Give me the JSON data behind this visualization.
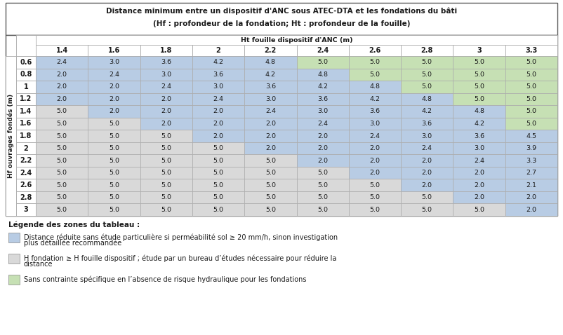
{
  "title_line1": "Distance minimum entre un dispositif d'ANC sous ATEC-DTA et les fondations du bâti",
  "title_line2": "(Hf : profondeur de la fondation; Ht : profondeur de la fouille)",
  "col_header_label": "Ht fouille dispositif d'ANC (m)",
  "row_header_label": "Hf ouvrages fondés (m)",
  "col_headers": [
    "1.4",
    "1.6",
    "1.8",
    "2",
    "2.2",
    "2.4",
    "2.6",
    "2.8",
    "3",
    "3.3"
  ],
  "row_headers": [
    "0.6",
    "0.8",
    "1",
    "1.2",
    "1.4",
    "1.6",
    "1.8",
    "2",
    "2.2",
    "2.4",
    "2.6",
    "2.8",
    "3"
  ],
  "values": [
    [
      2.4,
      3.0,
      3.6,
      4.2,
      4.8,
      5.0,
      5.0,
      5.0,
      5.0,
      5.0
    ],
    [
      2.0,
      2.4,
      3.0,
      3.6,
      4.2,
      4.8,
      5.0,
      5.0,
      5.0,
      5.0
    ],
    [
      2.0,
      2.0,
      2.4,
      3.0,
      3.6,
      4.2,
      4.8,
      5.0,
      5.0,
      5.0
    ],
    [
      2.0,
      2.0,
      2.0,
      2.4,
      3.0,
      3.6,
      4.2,
      4.8,
      5.0,
      5.0
    ],
    [
      5.0,
      2.0,
      2.0,
      2.0,
      2.4,
      3.0,
      3.6,
      4.2,
      4.8,
      5.0
    ],
    [
      5.0,
      5.0,
      2.0,
      2.0,
      2.0,
      2.4,
      3.0,
      3.6,
      4.2,
      5.0
    ],
    [
      5.0,
      5.0,
      5.0,
      2.0,
      2.0,
      2.0,
      2.4,
      3.0,
      3.6,
      4.5
    ],
    [
      5.0,
      5.0,
      5.0,
      5.0,
      2.0,
      2.0,
      2.0,
      2.4,
      3.0,
      3.9
    ],
    [
      5.0,
      5.0,
      5.0,
      5.0,
      5.0,
      2.0,
      2.0,
      2.0,
      2.4,
      3.3
    ],
    [
      5.0,
      5.0,
      5.0,
      5.0,
      5.0,
      5.0,
      2.0,
      2.0,
      2.0,
      2.7
    ],
    [
      5.0,
      5.0,
      5.0,
      5.0,
      5.0,
      5.0,
      5.0,
      2.0,
      2.0,
      2.1
    ],
    [
      5.0,
      5.0,
      5.0,
      5.0,
      5.0,
      5.0,
      5.0,
      5.0,
      2.0,
      2.0
    ],
    [
      5.0,
      5.0,
      5.0,
      5.0,
      5.0,
      5.0,
      5.0,
      5.0,
      5.0,
      2.0
    ]
  ],
  "colors": [
    [
      "blue",
      "blue",
      "blue",
      "blue",
      "blue",
      "green",
      "green",
      "green",
      "green",
      "green"
    ],
    [
      "blue",
      "blue",
      "blue",
      "blue",
      "blue",
      "blue",
      "green",
      "green",
      "green",
      "green"
    ],
    [
      "blue",
      "blue",
      "blue",
      "blue",
      "blue",
      "blue",
      "blue",
      "green",
      "green",
      "green"
    ],
    [
      "blue",
      "blue",
      "blue",
      "blue",
      "blue",
      "blue",
      "blue",
      "blue",
      "green",
      "green"
    ],
    [
      "gray",
      "blue",
      "blue",
      "blue",
      "blue",
      "blue",
      "blue",
      "blue",
      "blue",
      "green"
    ],
    [
      "gray",
      "gray",
      "blue",
      "blue",
      "blue",
      "blue",
      "blue",
      "blue",
      "blue",
      "green"
    ],
    [
      "gray",
      "gray",
      "gray",
      "blue",
      "blue",
      "blue",
      "blue",
      "blue",
      "blue",
      "blue"
    ],
    [
      "gray",
      "gray",
      "gray",
      "gray",
      "blue",
      "blue",
      "blue",
      "blue",
      "blue",
      "blue"
    ],
    [
      "gray",
      "gray",
      "gray",
      "gray",
      "gray",
      "blue",
      "blue",
      "blue",
      "blue",
      "blue"
    ],
    [
      "gray",
      "gray",
      "gray",
      "gray",
      "gray",
      "gray",
      "blue",
      "blue",
      "blue",
      "blue"
    ],
    [
      "gray",
      "gray",
      "gray",
      "gray",
      "gray",
      "gray",
      "gray",
      "blue",
      "blue",
      "blue"
    ],
    [
      "gray",
      "gray",
      "gray",
      "gray",
      "gray",
      "gray",
      "gray",
      "gray",
      "blue",
      "blue"
    ],
    [
      "gray",
      "gray",
      "gray",
      "gray",
      "gray",
      "gray",
      "gray",
      "gray",
      "gray",
      "blue"
    ]
  ],
  "color_map": {
    "blue": "#b8cce4",
    "gray": "#d9d9d9",
    "green": "#c6e0b4",
    "white": "#ffffff"
  },
  "legend_title": "Légende des zones du tableau :",
  "legend_items": [
    {
      "color": "#b8cce4",
      "line1": "Distance réduite sans étude particulière si perméabilité sol ≥ 20 mm/h, sinon investigation",
      "line2": "plus détaillée recommandée"
    },
    {
      "color": "#d9d9d9",
      "line1": "H fondation ≥ H fouille dispositif ; étude par un bureau d’études nécessaire pour réduire la",
      "line2": "distance"
    },
    {
      "color": "#c6e0b4",
      "line1": "Sans contrainte spécifique en l’absence de risque hydraulique pour les fondations",
      "line2": ""
    }
  ],
  "border_color": "#5a5a5a",
  "grid_color": "#aaaaaa",
  "text_color": "#1a1a1a"
}
